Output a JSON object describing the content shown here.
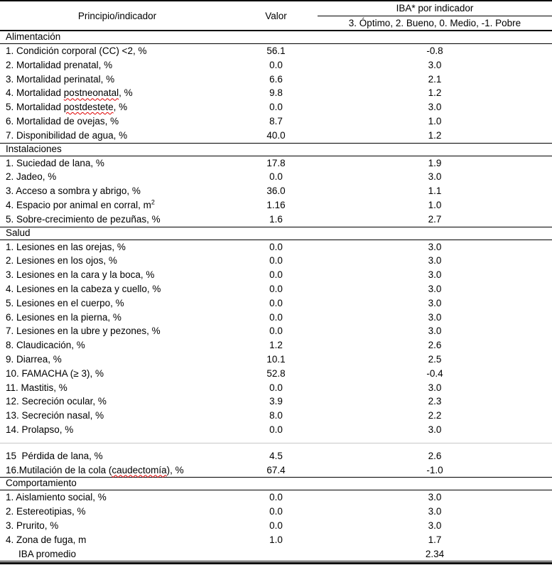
{
  "colors": {
    "rule": "#000000",
    "light_rule": "#c8c8c8",
    "squiggle": "#e00000",
    "text": "#000000",
    "background": "#ffffff"
  },
  "table": {
    "header": {
      "col1": "Principio/indicador",
      "col2": "Valor",
      "col3_top": "IBA* por indicador",
      "col3_bottom": "3. Óptimo, 2. Bueno, 0. Medio, -1. Pobre"
    },
    "sections": [
      {
        "name": "alimentacion",
        "title": "Alimentación",
        "rows": [
          {
            "label": "1. Condición corporal (CC) <2, %",
            "valor": "56.1",
            "iba": "-0.8"
          },
          {
            "label": "2. Mortalidad prenatal, %",
            "valor": "0.0",
            "iba": "3.0"
          },
          {
            "label": "3. Mortalidad perinatal, %",
            "valor": "6.6",
            "iba": "2.1"
          },
          {
            "parts": [
              {
                "text": "4. Mortalidad "
              },
              {
                "text": "postneonatal",
                "squiggle": true
              },
              {
                "text": ", %"
              }
            ],
            "valor": "9.8",
            "iba": "1.2"
          },
          {
            "parts": [
              {
                "text": "5. Mortalidad "
              },
              {
                "text": "postdestete",
                "squiggle": true
              },
              {
                "text": ", %"
              }
            ],
            "valor": "0.0",
            "iba": "3.0"
          },
          {
            "label": "6. Mortalidad de ovejas, %",
            "valor": "8.7",
            "iba": "1.0"
          },
          {
            "label": "7. Disponibilidad de agua, %",
            "valor": "40.0",
            "iba": "1.2"
          }
        ]
      },
      {
        "name": "instalaciones",
        "title": "Instalaciones",
        "rows": [
          {
            "label": "1. Suciedad de lana, %",
            "valor": "17.8",
            "iba": "1.9"
          },
          {
            "label": "2. Jadeo, %",
            "valor": "0.0",
            "iba": "3.0"
          },
          {
            "label": "3. Acceso a sombra y abrigo, %",
            "valor": "36.0",
            "iba": "1.1"
          },
          {
            "parts": [
              {
                "text": "4. Espacio por animal en corral, m"
              },
              {
                "text": "2",
                "sup": true
              }
            ],
            "valor": "1.16",
            "iba": "1.0"
          },
          {
            "label": "5. Sobre-crecimiento de pezuñas, %",
            "valor": "1.6",
            "iba": "2.7"
          }
        ]
      },
      {
        "name": "salud",
        "title": "Salud",
        "rows": [
          {
            "label": "1. Lesiones en las orejas, %",
            "valor": "0.0",
            "iba": "3.0"
          },
          {
            "label": "2. Lesiones en los ojos, %",
            "valor": "0.0",
            "iba": "3.0"
          },
          {
            "label": "3. Lesiones en la cara y la boca, %",
            "valor": "0.0",
            "iba": "3.0"
          },
          {
            "label": "4. Lesiones en la cabeza y cuello, %",
            "valor": "0.0",
            "iba": "3.0"
          },
          {
            "label": "5. Lesiones en el cuerpo, %",
            "valor": "0.0",
            "iba": "3.0"
          },
          {
            "label": "6. Lesiones en la pierna, %",
            "valor": "0.0",
            "iba": "3.0"
          },
          {
            "label": "7. Lesiones en la ubre y pezones, %",
            "valor": "0.0",
            "iba": "3.0"
          },
          {
            "label": "8. Claudicación, %",
            "valor": "1.2",
            "iba": "2.6"
          },
          {
            "label": "9. Diarrea, %",
            "valor": "10.1",
            "iba": "2.5"
          },
          {
            "label": "10. FAMACHA (≥ 3), %",
            "valor": "52.8",
            "iba": "-0.4"
          },
          {
            "label": "11. Mastitis, %",
            "valor": "0.0",
            "iba": "3.0"
          },
          {
            "label": "12. Secreción ocular, %",
            "valor": "3.9",
            "iba": "2.3"
          },
          {
            "label": "13. Secreción nasal, %",
            "valor": "8.0",
            "iba": "2.2"
          },
          {
            "label": "14. Prolapso, %",
            "valor": "0.0",
            "iba": "3.0"
          },
          {
            "divider": true
          },
          {
            "label": "15  Pérdida de lana, %",
            "valor": "4.5",
            "iba": "2.6"
          },
          {
            "parts": [
              {
                "text": "16.Mutilación de la cola ("
              },
              {
                "text": "caudectomía",
                "squiggle": true
              },
              {
                "text": "), %"
              }
            ],
            "valor": "67.4",
            "iba": "-1.0"
          }
        ]
      },
      {
        "name": "comportamiento",
        "title": "Comportamiento",
        "rows": [
          {
            "label": "1. Aislamiento social, %",
            "valor": "0.0",
            "iba": "3.0"
          },
          {
            "label": "2. Estereotipias, %",
            "valor": "0.0",
            "iba": "3.0"
          },
          {
            "label": "3. Prurito, %",
            "valor": "0.0",
            "iba": "3.0"
          },
          {
            "label": "4. Zona de fuga, m",
            "valor": "1.0",
            "iba": "1.7"
          },
          {
            "label": "IBA promedio",
            "valor": "",
            "iba": "2.34",
            "indent": true
          }
        ]
      }
    ]
  }
}
